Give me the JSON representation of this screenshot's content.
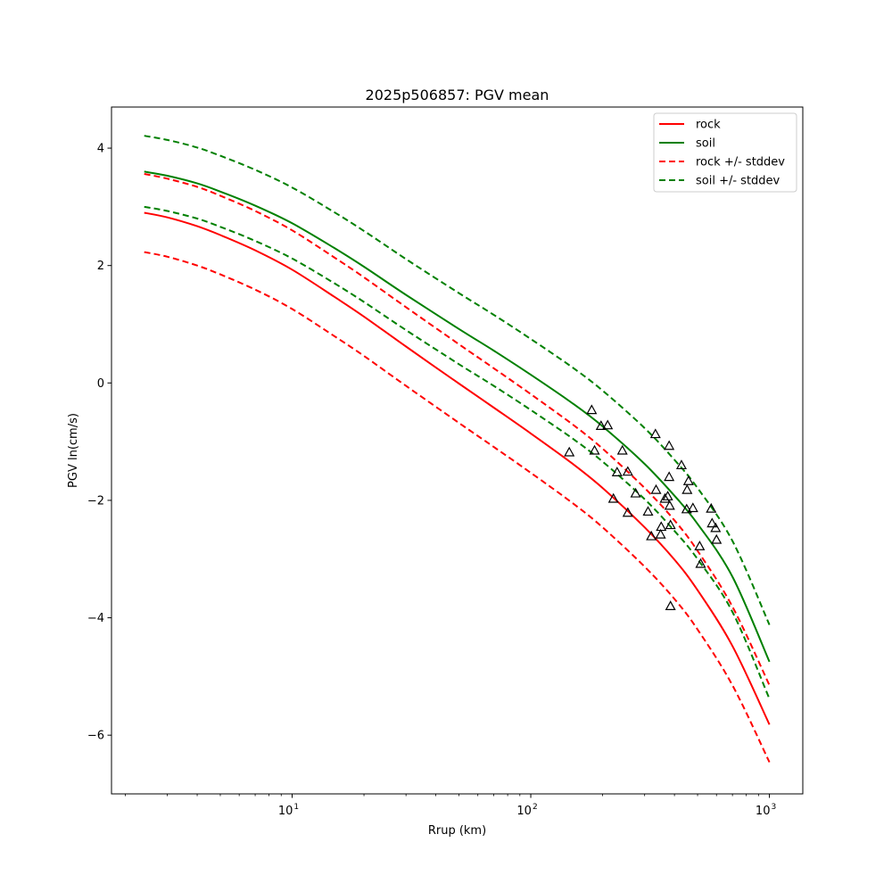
{
  "chart_data": {
    "type": "line",
    "title": "2025p506857: PGV mean",
    "xlabel": "Rrup (km)",
    "ylabel": "PGV ln(cm/s)",
    "xscale": "log",
    "xlim": [
      1.75,
      1380
    ],
    "ylim": [
      -7.0,
      4.7
    ],
    "x_ticks": [
      {
        "value": 10,
        "base": "10",
        "exp": "1"
      },
      {
        "value": 100,
        "base": "10",
        "exp": "2"
      },
      {
        "value": 1000,
        "base": "10",
        "exp": "3"
      }
    ],
    "y_ticks": [
      {
        "value": 4,
        "label": "4"
      },
      {
        "value": 2,
        "label": "2"
      },
      {
        "value": 0,
        "label": "0"
      },
      {
        "value": -2,
        "label": "−2"
      },
      {
        "value": -4,
        "label": "−4"
      },
      {
        "value": -6,
        "label": "−6"
      }
    ],
    "grid": false,
    "legend_position": "top-right",
    "x": [
      2.4,
      3,
      4,
      5,
      7,
      10,
      15,
      20,
      30,
      50,
      70,
      100,
      150,
      200,
      300,
      400,
      500,
      700,
      1000
    ],
    "series": [
      {
        "name": "rock",
        "color": "#ff0000",
        "dash": "solid",
        "values": [
          2.9,
          2.82,
          2.67,
          2.52,
          2.26,
          1.93,
          1.47,
          1.13,
          0.62,
          -0.01,
          -0.42,
          -0.86,
          -1.38,
          -1.79,
          -2.46,
          -3.01,
          -3.53,
          -4.48,
          -5.82
        ]
      },
      {
        "name": "soil",
        "color": "#008000",
        "dash": "solid",
        "values": [
          3.6,
          3.53,
          3.4,
          3.26,
          3.02,
          2.72,
          2.3,
          1.98,
          1.5,
          0.92,
          0.55,
          0.14,
          -0.35,
          -0.74,
          -1.38,
          -1.92,
          -2.4,
          -3.3,
          -4.75
        ]
      },
      {
        "name": "rock +/- stddev",
        "color": "#ff0000",
        "dash": "dashed",
        "values": [
          3.56,
          3.48,
          3.34,
          3.19,
          2.93,
          2.6,
          2.14,
          1.8,
          1.29,
          0.66,
          0.25,
          -0.19,
          -0.71,
          -1.12,
          -1.79,
          -2.34,
          -2.86,
          -3.81,
          -5.15
        ]
      },
      {
        "name": "rock +/- stddev (lower)",
        "color": "#ff0000",
        "dash": "dashed",
        "values": [
          2.23,
          2.15,
          2.0,
          1.85,
          1.59,
          1.26,
          0.8,
          0.46,
          -0.05,
          -0.68,
          -1.09,
          -1.53,
          -2.05,
          -2.46,
          -3.13,
          -3.68,
          -4.2,
          -5.15,
          -6.46
        ]
      },
      {
        "name": "soil +/- stddev",
        "color": "#008000",
        "dash": "dashed",
        "values": [
          4.21,
          4.14,
          4.01,
          3.87,
          3.63,
          3.33,
          2.91,
          2.59,
          2.11,
          1.53,
          1.16,
          0.75,
          0.26,
          -0.13,
          -0.77,
          -1.31,
          -1.79,
          -2.69,
          -4.12
        ]
      },
      {
        "name": "soil +/- stddev (lower)",
        "color": "#008000",
        "dash": "dashed",
        "values": [
          3.0,
          2.93,
          2.8,
          2.66,
          2.42,
          2.12,
          1.7,
          1.38,
          0.9,
          0.32,
          -0.05,
          -0.46,
          -0.95,
          -1.34,
          -1.98,
          -2.52,
          -3.0,
          -3.9,
          -5.38
        ]
      }
    ],
    "legend": [
      {
        "label": "rock",
        "color": "#ff0000",
        "dash": "solid"
      },
      {
        "label": "soil",
        "color": "#008000",
        "dash": "solid"
      },
      {
        "label": "rock +/- stddev",
        "color": "#ff0000",
        "dash": "dashed"
      },
      {
        "label": "soil +/- stddev",
        "color": "#008000",
        "dash": "dashed"
      }
    ],
    "observations": {
      "marker": "triangle",
      "points": [
        [
          145,
          -1.18
        ],
        [
          180,
          -0.46
        ],
        [
          185,
          -1.15
        ],
        [
          197,
          -0.73
        ],
        [
          210,
          -0.72
        ],
        [
          222,
          -1.97
        ],
        [
          230,
          -1.52
        ],
        [
          242,
          -1.15
        ],
        [
          255,
          -1.51
        ],
        [
          255,
          -2.21
        ],
        [
          275,
          -1.88
        ],
        [
          310,
          -2.19
        ],
        [
          320,
          -2.61
        ],
        [
          333,
          -0.87
        ],
        [
          335,
          -1.82
        ],
        [
          350,
          -2.58
        ],
        [
          352,
          -2.45
        ],
        [
          365,
          -1.97
        ],
        [
          375,
          -1.93
        ],
        [
          380,
          -1.6
        ],
        [
          380,
          -1.07
        ],
        [
          382,
          -2.09
        ],
        [
          385,
          -2.42
        ],
        [
          385,
          -3.8
        ],
        [
          428,
          -1.4
        ],
        [
          450,
          -2.15
        ],
        [
          452,
          -1.82
        ],
        [
          458,
          -1.67
        ],
        [
          478,
          -2.13
        ],
        [
          510,
          -2.78
        ],
        [
          515,
          -3.08
        ],
        [
          570,
          -2.14
        ],
        [
          575,
          -2.39
        ],
        [
          595,
          -2.47
        ],
        [
          600,
          -2.67
        ]
      ]
    }
  }
}
